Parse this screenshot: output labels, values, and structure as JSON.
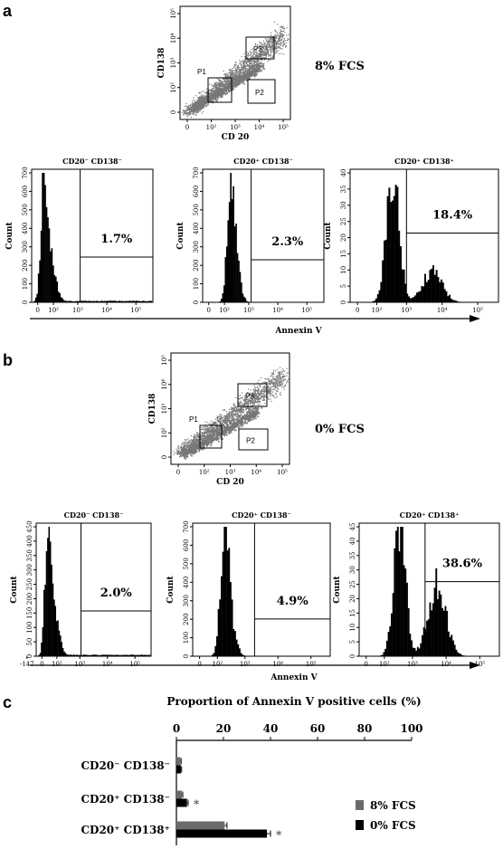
{
  "colors": {
    "gray": "#6e6e6e",
    "black": "#000000",
    "scatter": "#777777",
    "bar8": "#6b6b6b",
    "bar0": "#000000"
  },
  "panels": [
    {
      "letter": "a",
      "condition": "8% FCS",
      "scatter": {
        "ylabel": "CD138",
        "xlabel": "CD 20",
        "gates": [
          "P1",
          "P2",
          "P3"
        ],
        "xticks": [
          "0",
          "10²",
          "10³",
          "10⁴",
          "10⁵"
        ],
        "yticks": [
          "0",
          "10²",
          "10³",
          "10⁴",
          "10⁵"
        ]
      },
      "histograms": [
        {
          "title": "CD20⁻ CD138⁻",
          "ylabel": "Count",
          "yticks": [
            "0",
            "100",
            "200",
            "300",
            "400",
            "500",
            "600",
            "700"
          ],
          "xticks": [
            "0",
            "10²",
            "10³",
            "10⁴",
            "10⁵"
          ],
          "gate_percent": "1.7%"
        },
        {
          "title": "CD20⁺ CD138⁻",
          "ylabel": "Count",
          "yticks": [
            "0",
            "100",
            "200",
            "300",
            "400",
            "500",
            "600",
            "700"
          ],
          "xticks": [
            "0",
            "10²",
            "10³",
            "10⁴",
            "10⁵"
          ],
          "gate_percent": "2.3%"
        },
        {
          "title": "CD20⁺ CD138⁺",
          "ylabel": "Count",
          "yticks": [
            "0",
            "5",
            "10",
            "15",
            "20",
            "25",
            "30",
            "35",
            "40"
          ],
          "xticks": [
            "0",
            "10²",
            "10³",
            "10⁴",
            "10⁵"
          ],
          "gate_percent": "18.4%"
        }
      ],
      "arrow_label": "Annexin V"
    },
    {
      "letter": "b",
      "condition": "0% FCS",
      "scatter": {
        "ylabel": "CD138",
        "xlabel": "CD 20",
        "gates": [
          "P1",
          "P2",
          "P3"
        ],
        "xticks": [
          "0",
          "10²",
          "10³",
          "10⁴",
          "10⁵"
        ],
        "yticks": [
          "0",
          "10²",
          "10³",
          "10⁴",
          "10⁵"
        ]
      },
      "histograms": [
        {
          "title": "CD20⁻ CD138⁻",
          "ylabel": "Count",
          "yticks": [
            "0",
            "50",
            "100",
            "150",
            "200",
            "250",
            "300",
            "350",
            "400",
            "450"
          ],
          "xticks": [
            "-147",
            "0",
            "10²",
            "10³",
            "10⁴",
            "10⁵"
          ],
          "gate_percent": "2.0%"
        },
        {
          "title": "CD20⁺ CD138⁻",
          "ylabel": "Count",
          "yticks": [
            "0",
            "100",
            "200",
            "300",
            "400",
            "500",
            "600",
            "700"
          ],
          "xticks": [
            "0",
            "10²",
            "10³",
            "10⁴",
            "10⁵"
          ],
          "gate_percent": "4.9%"
        },
        {
          "title": "CD20⁺ CD138⁺",
          "ylabel": "Count",
          "yticks": [
            "0",
            "5",
            "10",
            "15",
            "20",
            "25",
            "30",
            "35",
            "40",
            "45"
          ],
          "xticks": [
            "0",
            "10²",
            "10³",
            "10⁴",
            "10⁵"
          ],
          "gate_percent": "38.6%"
        }
      ],
      "arrow_label": "Annexin V"
    }
  ],
  "chart_data": {
    "panel_letter": "c",
    "type": "bar",
    "orientation": "horizontal",
    "title": "Proportion of Annexin V positive cells (%)",
    "xlim": [
      0,
      100
    ],
    "xticks": [
      "0",
      "20",
      "40",
      "60",
      "80",
      "100"
    ],
    "categories": [
      "CD20⁻ CD138⁻",
      "CD20⁺ CD138⁻",
      "CD20⁺ CD138⁺"
    ],
    "series": [
      {
        "name": "8% FCS",
        "values": [
          1.7,
          2.3,
          20.5
        ],
        "errors": [
          0.3,
          0.4,
          1.0
        ]
      },
      {
        "name": "0% FCS",
        "values": [
          1.9,
          4.5,
          38.5
        ],
        "errors": [
          0.3,
          0.5,
          1.5
        ]
      }
    ],
    "significance": [
      "",
      "*",
      "*"
    ],
    "legend_position": "right"
  }
}
